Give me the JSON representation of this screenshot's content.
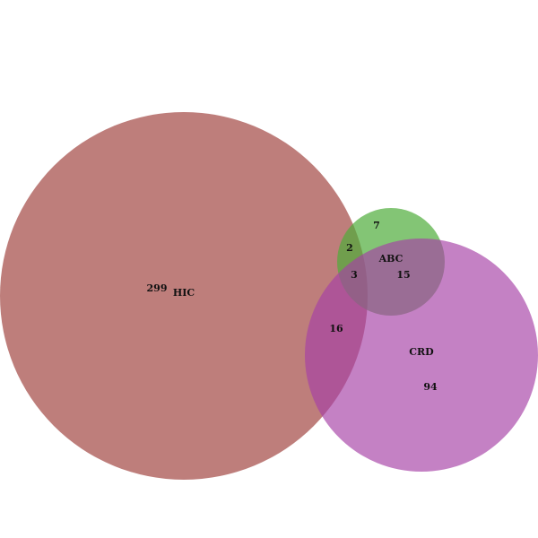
{
  "diagram": {
    "type": "venn",
    "sets": [
      {
        "id": "hic",
        "label": "HIC",
        "color": "#a8534f"
      },
      {
        "id": "abc",
        "label": "ABC",
        "color": "#4fac3a"
      },
      {
        "id": "crd",
        "label": "CRD",
        "color": "#a53fa6"
      }
    ],
    "regions": [
      {
        "id": "hic_only",
        "sets": [
          "HIC"
        ],
        "count": "299"
      },
      {
        "id": "abc_only",
        "sets": [
          "ABC"
        ],
        "count": "7"
      },
      {
        "id": "crd_only",
        "sets": [
          "CRD"
        ],
        "count": "94"
      },
      {
        "id": "hic_abc",
        "sets": [
          "HIC",
          "ABC"
        ],
        "count": "2"
      },
      {
        "id": "abc_crd",
        "sets": [
          "ABC",
          "CRD"
        ],
        "count": "15"
      },
      {
        "id": "hic_crd",
        "sets": [
          "HIC",
          "CRD"
        ],
        "count": "16"
      },
      {
        "id": "hic_abc_crd",
        "sets": [
          "HIC",
          "ABC",
          "CRD"
        ],
        "count": "3"
      }
    ]
  }
}
